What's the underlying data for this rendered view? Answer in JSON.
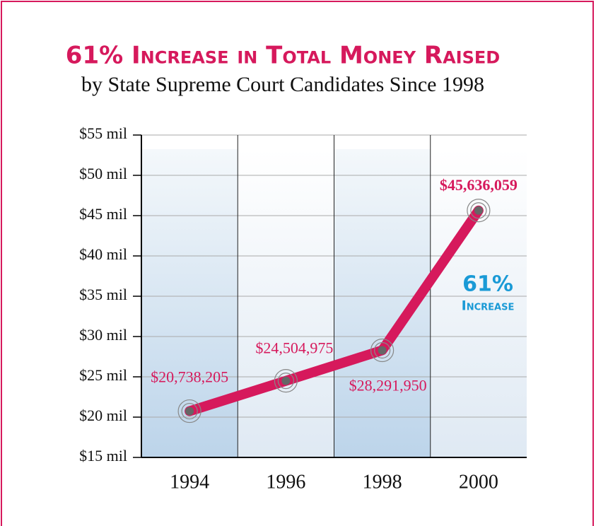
{
  "chart_data": {
    "type": "line",
    "title": "61% Increase in Total Money Raised",
    "subtitle": "by State Supreme Court Candidates Since 1998",
    "categories": [
      "1994",
      "1996",
      "1998",
      "2000"
    ],
    "values": [
      20.738205,
      24.504975,
      28.29195,
      45.636059
    ],
    "value_labels": [
      "$20,738,205",
      "$24,504,975",
      "$28,291,950",
      "$45,636,059"
    ],
    "color": "#d6195c",
    "ylim": [
      15,
      55
    ],
    "yticks": [
      {
        "value": 15,
        "label": "$15 mil"
      },
      {
        "value": 20,
        "label": "$20 mil"
      },
      {
        "value": 25,
        "label": "$25 mil"
      },
      {
        "value": 30,
        "label": "$30 mil"
      },
      {
        "value": 35,
        "label": "$35 mil"
      },
      {
        "value": 40,
        "label": "$40 mil"
      },
      {
        "value": 45,
        "label": "$45 mil"
      },
      {
        "value": 50,
        "label": "$50 mil"
      },
      {
        "value": 55,
        "label": "$55 mil"
      }
    ],
    "grid": true,
    "annotations": [
      "61%",
      "Increase"
    ]
  }
}
